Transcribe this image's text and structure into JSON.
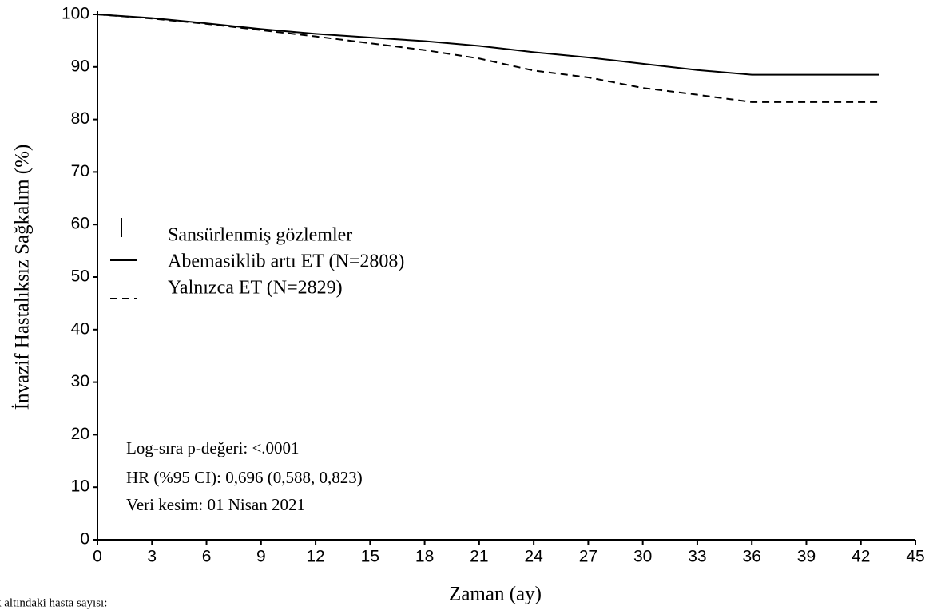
{
  "chart_data": {
    "type": "line",
    "x_label": "Zaman (ay)",
    "y_label": "İnvazif Hastalıksız Sağkalım (%)",
    "x": [
      0,
      3,
      6,
      9,
      12,
      15,
      18,
      21,
      24,
      27,
      30,
      33,
      36,
      39,
      42,
      43
    ],
    "series": [
      {
        "name": "Abemasiklib artı ET (N=2808)",
        "color": "#000000",
        "line_style": "solid",
        "values": [
          100,
          99.3,
          98.3,
          97.2,
          96.3,
          95.6,
          94.9,
          94.0,
          92.8,
          91.8,
          90.6,
          89.4,
          88.5,
          88.5,
          88.5,
          88.5
        ]
      },
      {
        "name": "Yalnızca ET (N=2829)",
        "color": "#000000",
        "line_style": "dashed",
        "values": [
          100,
          99.2,
          98.2,
          97.0,
          95.8,
          94.5,
          93.2,
          91.6,
          89.3,
          88.0,
          86.0,
          84.7,
          83.3,
          83.3,
          83.3,
          83.3
        ]
      }
    ],
    "censored_label": "Sansürlenmiş gözlemler",
    "annotations": [
      "Log-sıra p-değeri: <.0001",
      "HR (%95 CI): 0,696 (0,588, 0,823)",
      "Veri kesim: 01 Nisan 2021"
    ],
    "footer": "k altındaki hasta sayısı:",
    "xlim": [
      0,
      45
    ],
    "xticks": [
      0,
      3,
      6,
      9,
      12,
      15,
      18,
      21,
      24,
      27,
      30,
      33,
      36,
      39,
      42,
      45
    ],
    "ylim": [
      0,
      100
    ],
    "yticks": [
      0,
      10,
      20,
      30,
      40,
      50,
      60,
      70,
      80,
      90,
      100
    ],
    "grid": false
  }
}
